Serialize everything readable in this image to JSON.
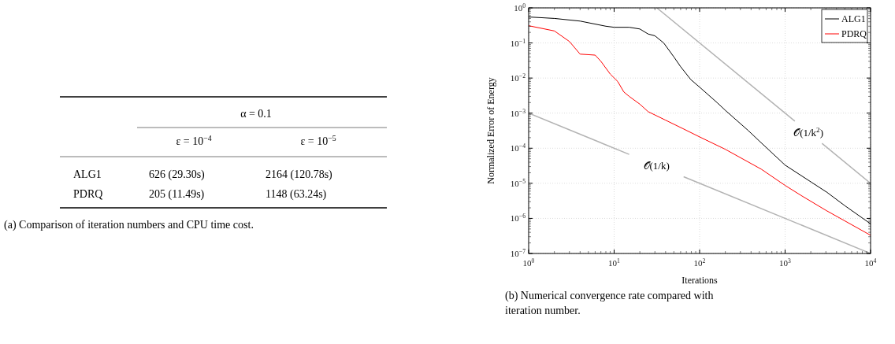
{
  "chart_data": [
    {
      "type": "other",
      "legend_title": "α = 0.1",
      "categories": [
        "ALG1",
        "PDRQ"
      ],
      "series": [
        {
          "name": "ε = 10$^{−4}$",
          "values": [
            626,
            205
          ],
          "value_labels": [
            "626 (29.30s)",
            "205 (11.49s)"
          ]
        },
        {
          "name": "ε = 10$^{−5}$",
          "values": [
            2164,
            1148
          ],
          "value_labels": [
            "2164 (120.78s)",
            "1148 (63.24s)"
          ]
        }
      ],
      "annotations": [
        "(a) Comparison of iteration numbers and CPU time cost."
      ]
    },
    {
      "type": "line",
      "xlabel": "Iterations",
      "ylabel": "Normalized Error of Energy",
      "log": "xy",
      "grid": true,
      "legend": "top right",
      "xlim": [
        1,
        10000
      ],
      "ylim": [
        1e-07,
        1
      ],
      "xticks": [
        {
          "value": 1,
          "label": "10$^{0}$"
        },
        {
          "value": 10,
          "label": "10$^{1}$"
        },
        {
          "value": 100,
          "label": "10$^{2}$"
        },
        {
          "value": 1000,
          "label": "10$^{3}$"
        },
        {
          "value": 10000,
          "label": "10$^{4}$"
        }
      ],
      "yticks": [
        {
          "value": 1e-07,
          "label": "10$^{−7}$"
        },
        {
          "value": 1e-06,
          "label": "10$^{−6}$"
        },
        {
          "value": 1e-05,
          "label": "10$^{−5}$"
        },
        {
          "value": 0.0001,
          "label": "10$^{−4}$"
        },
        {
          "value": 0.001,
          "label": "10$^{−3}$"
        },
        {
          "value": 0.01,
          "label": "10$^{−2}$"
        },
        {
          "value": 0.1,
          "label": "10$^{−1}$"
        },
        {
          "value": 1,
          "label": "10$^{0}$"
        }
      ],
      "series": [
        {
          "name": "ALG1",
          "color": "#000000",
          "x": [
            1,
            2,
            4,
            8,
            10,
            15,
            20,
            25,
            30,
            38,
            50,
            60,
            79,
            100,
            160,
            200,
            370,
            500,
            1000,
            2000,
            3100,
            5000,
            10000
          ],
          "values": [
            0.55,
            0.5,
            0.42,
            0.3,
            0.28,
            0.28,
            0.25,
            0.18,
            0.16,
            0.1,
            0.04,
            0.021,
            0.009,
            0.0055,
            0.002,
            0.0012,
            0.00032,
            0.00016,
            3.3e-05,
            1.1e-05,
            5.5e-06,
            2.3e-06,
            7e-07
          ]
        },
        {
          "name": "PDRQ",
          "color": "#ff0000",
          "x": [
            1,
            2,
            3,
            4,
            6,
            7,
            9,
            11,
            13,
            15,
            20,
            25,
            40,
            64,
            100,
            200,
            530,
            1000,
            1540,
            3000,
            10000
          ],
          "values": [
            0.31,
            0.22,
            0.11,
            0.048,
            0.045,
            0.03,
            0.013,
            0.008,
            0.004,
            0.003,
            0.0018,
            0.0011,
            0.00063,
            0.00036,
            0.00021,
            9.3e-05,
            2.5e-05,
            8.7e-06,
            4.5e-06,
            1.7e-06,
            3.3e-07
          ]
        },
        {
          "color": "#b3b3b3",
          "x": [
            31.62,
            1300,
            1900,
            2700,
            10000
          ],
          "values": [
            1,
            0.00059,
            null,
            0.000137,
            1e-05
          ]
        },
        {
          "color": "#b3b3b3",
          "x": [
            1,
            15,
            35,
            65,
            10000
          ],
          "values": [
            0.001,
            6.67e-05,
            null,
            1.54e-05,
            1e-07
          ]
        }
      ],
      "annotations": [
        "𝒪(1/k$^{2}$)",
        "𝒪(1/k)",
        "(b) Numerical convergence rate compared with iteration number."
      ]
    }
  ]
}
